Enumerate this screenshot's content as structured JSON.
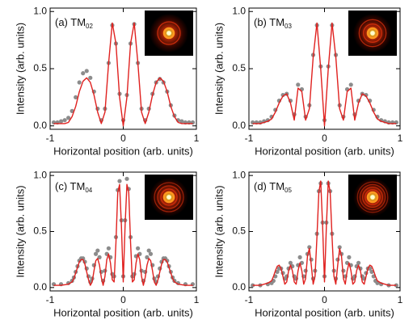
{
  "chart_data": [
    {
      "type": "line",
      "label": "(a) TM",
      "label_sub": "02",
      "xlabel": "Horizontal position (arb. units)",
      "ylabel": "Intensity (arb. units)",
      "xlim": [
        -1,
        1
      ],
      "ylim": [
        -0.03,
        1.03
      ],
      "xticks": [
        -1,
        0,
        1
      ],
      "yticks": [
        {
          "value": 0,
          "label": "0.0"
        },
        0.5,
        {
          "value": 1,
          "label": "1.0"
        }
      ],
      "x": [
        -0.95,
        -0.9,
        -0.85,
        -0.8,
        -0.75,
        -0.7,
        -0.65,
        -0.6,
        -0.55,
        -0.5,
        -0.45,
        -0.4,
        -0.35,
        -0.3,
        -0.25,
        -0.2,
        -0.15,
        -0.1,
        -0.05,
        0,
        0.05,
        0.1,
        0.15,
        0.2,
        0.25,
        0.3,
        0.35,
        0.4,
        0.45,
        0.5,
        0.55,
        0.6,
        0.65,
        0.7,
        0.75,
        0.8,
        0.85,
        0.9,
        0.95
      ],
      "series": [
        {
          "style": "markers",
          "color": "#8c8c8c",
          "values": [
            0.03,
            0.03,
            0.04,
            0.05,
            0.07,
            0.13,
            0.25,
            0.38,
            0.46,
            0.48,
            0.42,
            0.3,
            0.15,
            0.05,
            0.15,
            0.55,
            0.88,
            0.72,
            0.28,
            0.05,
            0.27,
            0.72,
            0.89,
            0.55,
            0.15,
            0.05,
            0.15,
            0.28,
            0.38,
            0.41,
            0.38,
            0.3,
            0.18,
            0.09,
            0.05,
            0.04,
            0.03,
            0.03,
            0.03
          ]
        },
        {
          "style": "line",
          "color": "#e0211f",
          "values": [
            0.02,
            0.02,
            0.02,
            0.02,
            0.03,
            0.08,
            0.17,
            0.3,
            0.39,
            0.42,
            0.38,
            0.27,
            0.12,
            0.02,
            0.12,
            0.55,
            0.9,
            0.72,
            0.25,
            0.0,
            0.25,
            0.72,
            0.9,
            0.55,
            0.12,
            0.02,
            0.12,
            0.27,
            0.38,
            0.42,
            0.39,
            0.3,
            0.17,
            0.08,
            0.03,
            0.02,
            0.02,
            0.02,
            0.02
          ]
        }
      ]
    },
    {
      "type": "line",
      "label": "(b) TM",
      "label_sub": "03",
      "xlabel": "Horizontal position (arb. units)",
      "ylabel": "Intensity (arb. units)",
      "xlim": [
        -1,
        1
      ],
      "ylim": [
        -0.03,
        1.03
      ],
      "xticks": [
        -1,
        0,
        1
      ],
      "yticks": [
        {
          "value": 0,
          "label": "0.0"
        },
        0.5,
        {
          "value": 1,
          "label": "1.0"
        }
      ],
      "x": [
        -0.95,
        -0.9,
        -0.85,
        -0.8,
        -0.75,
        -0.7,
        -0.65,
        -0.6,
        -0.55,
        -0.5,
        -0.45,
        -0.4,
        -0.35,
        -0.3,
        -0.25,
        -0.2,
        -0.15,
        -0.1,
        -0.05,
        0,
        0.05,
        0.1,
        0.15,
        0.2,
        0.25,
        0.3,
        0.35,
        0.4,
        0.45,
        0.5,
        0.55,
        0.6,
        0.65,
        0.7,
        0.75,
        0.8,
        0.85,
        0.9,
        0.95
      ],
      "series": [
        {
          "style": "markers",
          "color": "#8c8c8c",
          "values": [
            0.03,
            0.03,
            0.03,
            0.04,
            0.05,
            0.08,
            0.14,
            0.22,
            0.27,
            0.28,
            0.22,
            0.1,
            0.36,
            0.32,
            0.08,
            0.18,
            0.62,
            0.88,
            0.52,
            0.05,
            0.52,
            0.88,
            0.62,
            0.18,
            0.08,
            0.32,
            0.36,
            0.1,
            0.22,
            0.28,
            0.27,
            0.22,
            0.14,
            0.08,
            0.05,
            0.04,
            0.03,
            0.03,
            0.03
          ]
        },
        {
          "style": "line",
          "color": "#e0211f",
          "values": [
            0.02,
            0.02,
            0.02,
            0.03,
            0.04,
            0.06,
            0.12,
            0.2,
            0.26,
            0.28,
            0.2,
            0.05,
            0.33,
            0.3,
            0.05,
            0.15,
            0.6,
            0.9,
            0.5,
            0.0,
            0.5,
            0.9,
            0.6,
            0.15,
            0.05,
            0.3,
            0.33,
            0.05,
            0.2,
            0.28,
            0.26,
            0.2,
            0.12,
            0.06,
            0.04,
            0.03,
            0.02,
            0.02,
            0.02
          ]
        }
      ]
    },
    {
      "type": "line",
      "label": "(c) TM",
      "label_sub": "04",
      "xlabel": "Horizontal position (arb. units)",
      "ylabel": "Intensity (arb. units)",
      "xlim": [
        -1,
        1
      ],
      "ylim": [
        -0.03,
        1.03
      ],
      "xticks": [
        -1,
        0,
        1
      ],
      "yticks": [
        {
          "value": 0,
          "label": "0.0"
        },
        0.5,
        {
          "value": 1,
          "label": "1.0"
        }
      ],
      "x": [
        -0.95,
        -0.85,
        -0.75,
        -0.7,
        -0.675,
        -0.65,
        -0.625,
        -0.6,
        -0.575,
        -0.55,
        -0.525,
        -0.5,
        -0.475,
        -0.45,
        -0.425,
        -0.4,
        -0.375,
        -0.35,
        -0.325,
        -0.3,
        -0.275,
        -0.25,
        -0.225,
        -0.2,
        -0.175,
        -0.15,
        -0.125,
        -0.1,
        -0.075,
        -0.05,
        -0.025,
        0,
        0.025,
        0.05,
        0.075,
        0.1,
        0.125,
        0.15,
        0.175,
        0.2,
        0.225,
        0.25,
        0.275,
        0.3,
        0.325,
        0.35,
        0.375,
        0.4,
        0.425,
        0.45,
        0.475,
        0.5,
        0.525,
        0.55,
        0.575,
        0.6,
        0.625,
        0.65,
        0.675,
        0.7,
        0.75,
        0.85,
        0.95
      ],
      "series": [
        {
          "style": "markers",
          "color": "#8c8c8c",
          "values": [
            0.03,
            0.03,
            0.04,
            0.06,
            0.09,
            0.14,
            0.19,
            0.24,
            0.26,
            0.26,
            0.23,
            0.17,
            0.1,
            0.05,
            0.08,
            0.2,
            0.3,
            0.33,
            0.27,
            0.14,
            0.06,
            0.15,
            0.3,
            0.35,
            0.27,
            0.12,
            0.1,
            0.45,
            0.87,
            0.95,
            0.6,
            0.1,
            0.6,
            0.97,
            0.88,
            0.45,
            0.1,
            0.12,
            0.28,
            0.35,
            0.3,
            0.15,
            0.06,
            0.14,
            0.27,
            0.33,
            0.3,
            0.2,
            0.08,
            0.05,
            0.1,
            0.17,
            0.23,
            0.26,
            0.26,
            0.24,
            0.19,
            0.14,
            0.09,
            0.06,
            0.04,
            0.03,
            0.03
          ]
        },
        {
          "style": "line",
          "color": "#e0211f",
          "values": [
            0.02,
            0.02,
            0.03,
            0.05,
            0.08,
            0.13,
            0.18,
            0.23,
            0.25,
            0.25,
            0.21,
            0.14,
            0.07,
            0.02,
            0.05,
            0.15,
            0.24,
            0.26,
            0.2,
            0.09,
            0.02,
            0.1,
            0.25,
            0.3,
            0.22,
            0.07,
            0.05,
            0.4,
            0.85,
            0.92,
            0.55,
            0.05,
            0.55,
            0.92,
            0.85,
            0.4,
            0.05,
            0.07,
            0.22,
            0.3,
            0.25,
            0.1,
            0.02,
            0.09,
            0.2,
            0.26,
            0.24,
            0.15,
            0.05,
            0.02,
            0.07,
            0.14,
            0.21,
            0.25,
            0.25,
            0.23,
            0.18,
            0.13,
            0.08,
            0.05,
            0.03,
            0.02,
            0.02
          ]
        }
      ]
    },
    {
      "type": "line",
      "label": "(d) TM",
      "label_sub": "05",
      "xlabel": "Horizontal position (arb. units)",
      "ylabel": "Intensity (arb. units)",
      "xlim": [
        -1,
        1
      ],
      "ylim": [
        -0.03,
        1.03
      ],
      "xticks": [
        -1,
        0,
        1
      ],
      "yticks": [
        {
          "value": 0,
          "label": "0.0"
        },
        0.5,
        {
          "value": 1,
          "label": "1.0"
        }
      ],
      "x": [
        -0.95,
        -0.85,
        -0.75,
        -0.7,
        -0.675,
        -0.65,
        -0.625,
        -0.6,
        -0.575,
        -0.55,
        -0.525,
        -0.5,
        -0.475,
        -0.45,
        -0.425,
        -0.4,
        -0.375,
        -0.35,
        -0.325,
        -0.3,
        -0.275,
        -0.25,
        -0.225,
        -0.2,
        -0.175,
        -0.15,
        -0.125,
        -0.1,
        -0.075,
        -0.05,
        -0.025,
        0,
        0.025,
        0.05,
        0.075,
        0.1,
        0.125,
        0.15,
        0.175,
        0.2,
        0.225,
        0.25,
        0.275,
        0.3,
        0.325,
        0.35,
        0.375,
        0.4,
        0.425,
        0.45,
        0.475,
        0.5,
        0.525,
        0.55,
        0.575,
        0.6,
        0.625,
        0.65,
        0.675,
        0.7,
        0.75,
        0.85,
        0.95
      ],
      "series": [
        {
          "style": "markers",
          "color": "#8c8c8c",
          "values": [
            0.02,
            0.02,
            0.03,
            0.04,
            0.06,
            0.1,
            0.14,
            0.17,
            0.17,
            0.13,
            0.08,
            0.1,
            0.17,
            0.22,
            0.19,
            0.1,
            0.08,
            0.2,
            0.27,
            0.22,
            0.1,
            0.15,
            0.3,
            0.36,
            0.25,
            0.08,
            0.15,
            0.48,
            0.86,
            0.93,
            0.58,
            0.1,
            0.58,
            0.93,
            0.86,
            0.48,
            0.15,
            0.08,
            0.25,
            0.36,
            0.3,
            0.15,
            0.1,
            0.22,
            0.27,
            0.2,
            0.08,
            0.1,
            0.19,
            0.22,
            0.17,
            0.1,
            0.08,
            0.13,
            0.17,
            0.17,
            0.14,
            0.1,
            0.06,
            0.04,
            0.03,
            0.02,
            0.02
          ]
        },
        {
          "style": "line",
          "color": "#e0211f",
          "values": [
            0.02,
            0.02,
            0.04,
            0.06,
            0.1,
            0.15,
            0.19,
            0.2,
            0.17,
            0.1,
            0.03,
            0.05,
            0.15,
            0.2,
            0.15,
            0.05,
            0.03,
            0.15,
            0.22,
            0.15,
            0.03,
            0.08,
            0.28,
            0.35,
            0.2,
            0.03,
            0.1,
            0.45,
            0.85,
            0.95,
            0.55,
            0.05,
            0.55,
            0.95,
            0.85,
            0.45,
            0.1,
            0.03,
            0.2,
            0.35,
            0.28,
            0.08,
            0.03,
            0.15,
            0.22,
            0.15,
            0.03,
            0.05,
            0.15,
            0.2,
            0.15,
            0.05,
            0.03,
            0.1,
            0.17,
            0.2,
            0.19,
            0.15,
            0.1,
            0.06,
            0.04,
            0.02,
            0.02
          ]
        }
      ]
    }
  ]
}
